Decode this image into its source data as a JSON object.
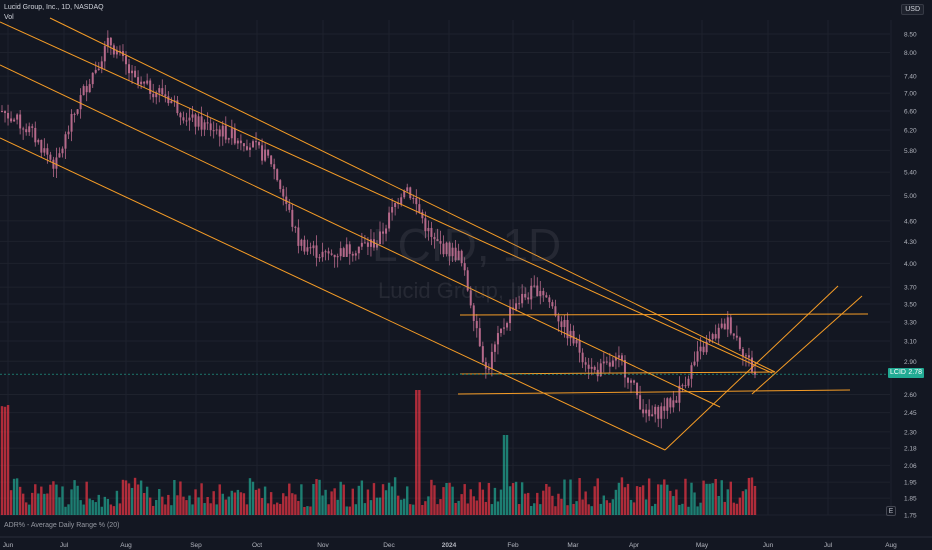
{
  "header": {
    "symbol_title": "Lucid Group, Inc., 1D, NASDAQ",
    "volume_label": "Vol",
    "currency": "USD"
  },
  "indicator": {
    "label": "ADR% - Average Daily Range % (20)"
  },
  "watermark": {
    "ticker": "LCID, 1D",
    "name": "Lucid Group, Inc."
  },
  "price_tag": {
    "symbol": "LCID",
    "value": "2.78",
    "color": "#22ab94"
  },
  "e_button": {
    "label": "E"
  },
  "colors": {
    "up": "#22ab94",
    "down": "#f23645",
    "candle_body": "#b5698a",
    "trendline": "#f59c26",
    "background": "#131722"
  },
  "chart_data": {
    "type": "candlestick",
    "title": "Lucid Group, Inc., 1D, NASDAQ",
    "y_scale": "log",
    "ylim": [
      1.75,
      8.9
    ],
    "y_ticks": [
      "8.50",
      "8.00",
      "7.40",
      "7.00",
      "6.60",
      "6.20",
      "5.80",
      "5.40",
      "5.00",
      "4.60",
      "4.30",
      "4.00",
      "3.70",
      "3.50",
      "3.30",
      "3.10",
      "2.90",
      "2.60",
      "2.45",
      "2.30",
      "2.18",
      "2.06",
      "1.95",
      "1.85",
      "1.75"
    ],
    "x_ticks": [
      "Jun",
      "Jul",
      "Aug",
      "Sep",
      "Oct",
      "Nov",
      "Dec",
      "2024",
      "Feb",
      "Mar",
      "Apr",
      "May",
      "Jun",
      "Jul",
      "Aug"
    ],
    "last_price": 2.78,
    "approx_close_path": [
      {
        "date": "Jun",
        "close": 6.6
      },
      {
        "date": "mid-Jun",
        "close": 6.2
      },
      {
        "date": "late-Jun",
        "close": 5.5
      },
      {
        "date": "Jul",
        "close": 7.0
      },
      {
        "date": "mid-Jul",
        "close": 8.3
      },
      {
        "date": "late-Jul",
        "close": 7.2
      },
      {
        "date": "Aug",
        "close": 7.0
      },
      {
        "date": "mid-Aug",
        "close": 6.4
      },
      {
        "date": "Sep",
        "close": 6.2
      },
      {
        "date": "mid-Sep",
        "close": 6.0
      },
      {
        "date": "Oct",
        "close": 5.6
      },
      {
        "date": "mid-Oct",
        "close": 4.3
      },
      {
        "date": "Nov",
        "close": 4.1
      },
      {
        "date": "mid-Nov",
        "close": 4.2
      },
      {
        "date": "Dec",
        "close": 4.3
      },
      {
        "date": "mid-Dec",
        "close": 5.2
      },
      {
        "date": "late-Dec",
        "close": 4.3
      },
      {
        "date": "2024",
        "close": 4.1
      },
      {
        "date": "mid-Jan",
        "close": 2.8
      },
      {
        "date": "Feb",
        "close": 3.5
      },
      {
        "date": "mid-Feb",
        "close": 3.7
      },
      {
        "date": "Mar",
        "close": 3.2
      },
      {
        "date": "mid-Mar",
        "close": 2.8
      },
      {
        "date": "Apr",
        "close": 2.9
      },
      {
        "date": "mid-Apr",
        "close": 2.4
      },
      {
        "date": "late-Apr",
        "close": 2.55
      },
      {
        "date": "May",
        "close": 3.0
      },
      {
        "date": "mid-May",
        "close": 3.3
      },
      {
        "date": "late-May",
        "close": 2.78
      }
    ],
    "volume_bars_note": "daily volume histogram in lower pane; spikes mid-Dec and mid-Jan",
    "annotations": [
      {
        "type": "descending-channel",
        "lines": 4
      },
      {
        "type": "horizontal-levels",
        "values": [
          3.35,
          2.78,
          2.65
        ]
      },
      {
        "type": "ascending-channel-projection",
        "lines": 2
      }
    ]
  }
}
